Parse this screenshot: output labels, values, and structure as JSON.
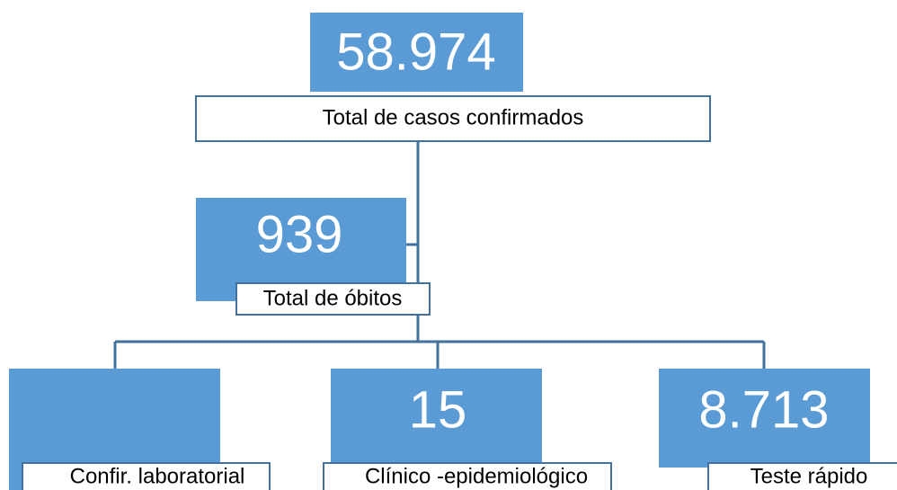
{
  "nodes": [
    {
      "value": "58.974",
      "label": "Total de casos confirmados"
    },
    {
      "value": "939",
      "label": "Total de óbitos"
    },
    {
      "label": "Confir. laboratorial"
    },
    {
      "value": "15",
      "label": "Clínico -epidemiológico"
    },
    {
      "value": "8.713",
      "label": "Teste rápido"
    }
  ]
}
